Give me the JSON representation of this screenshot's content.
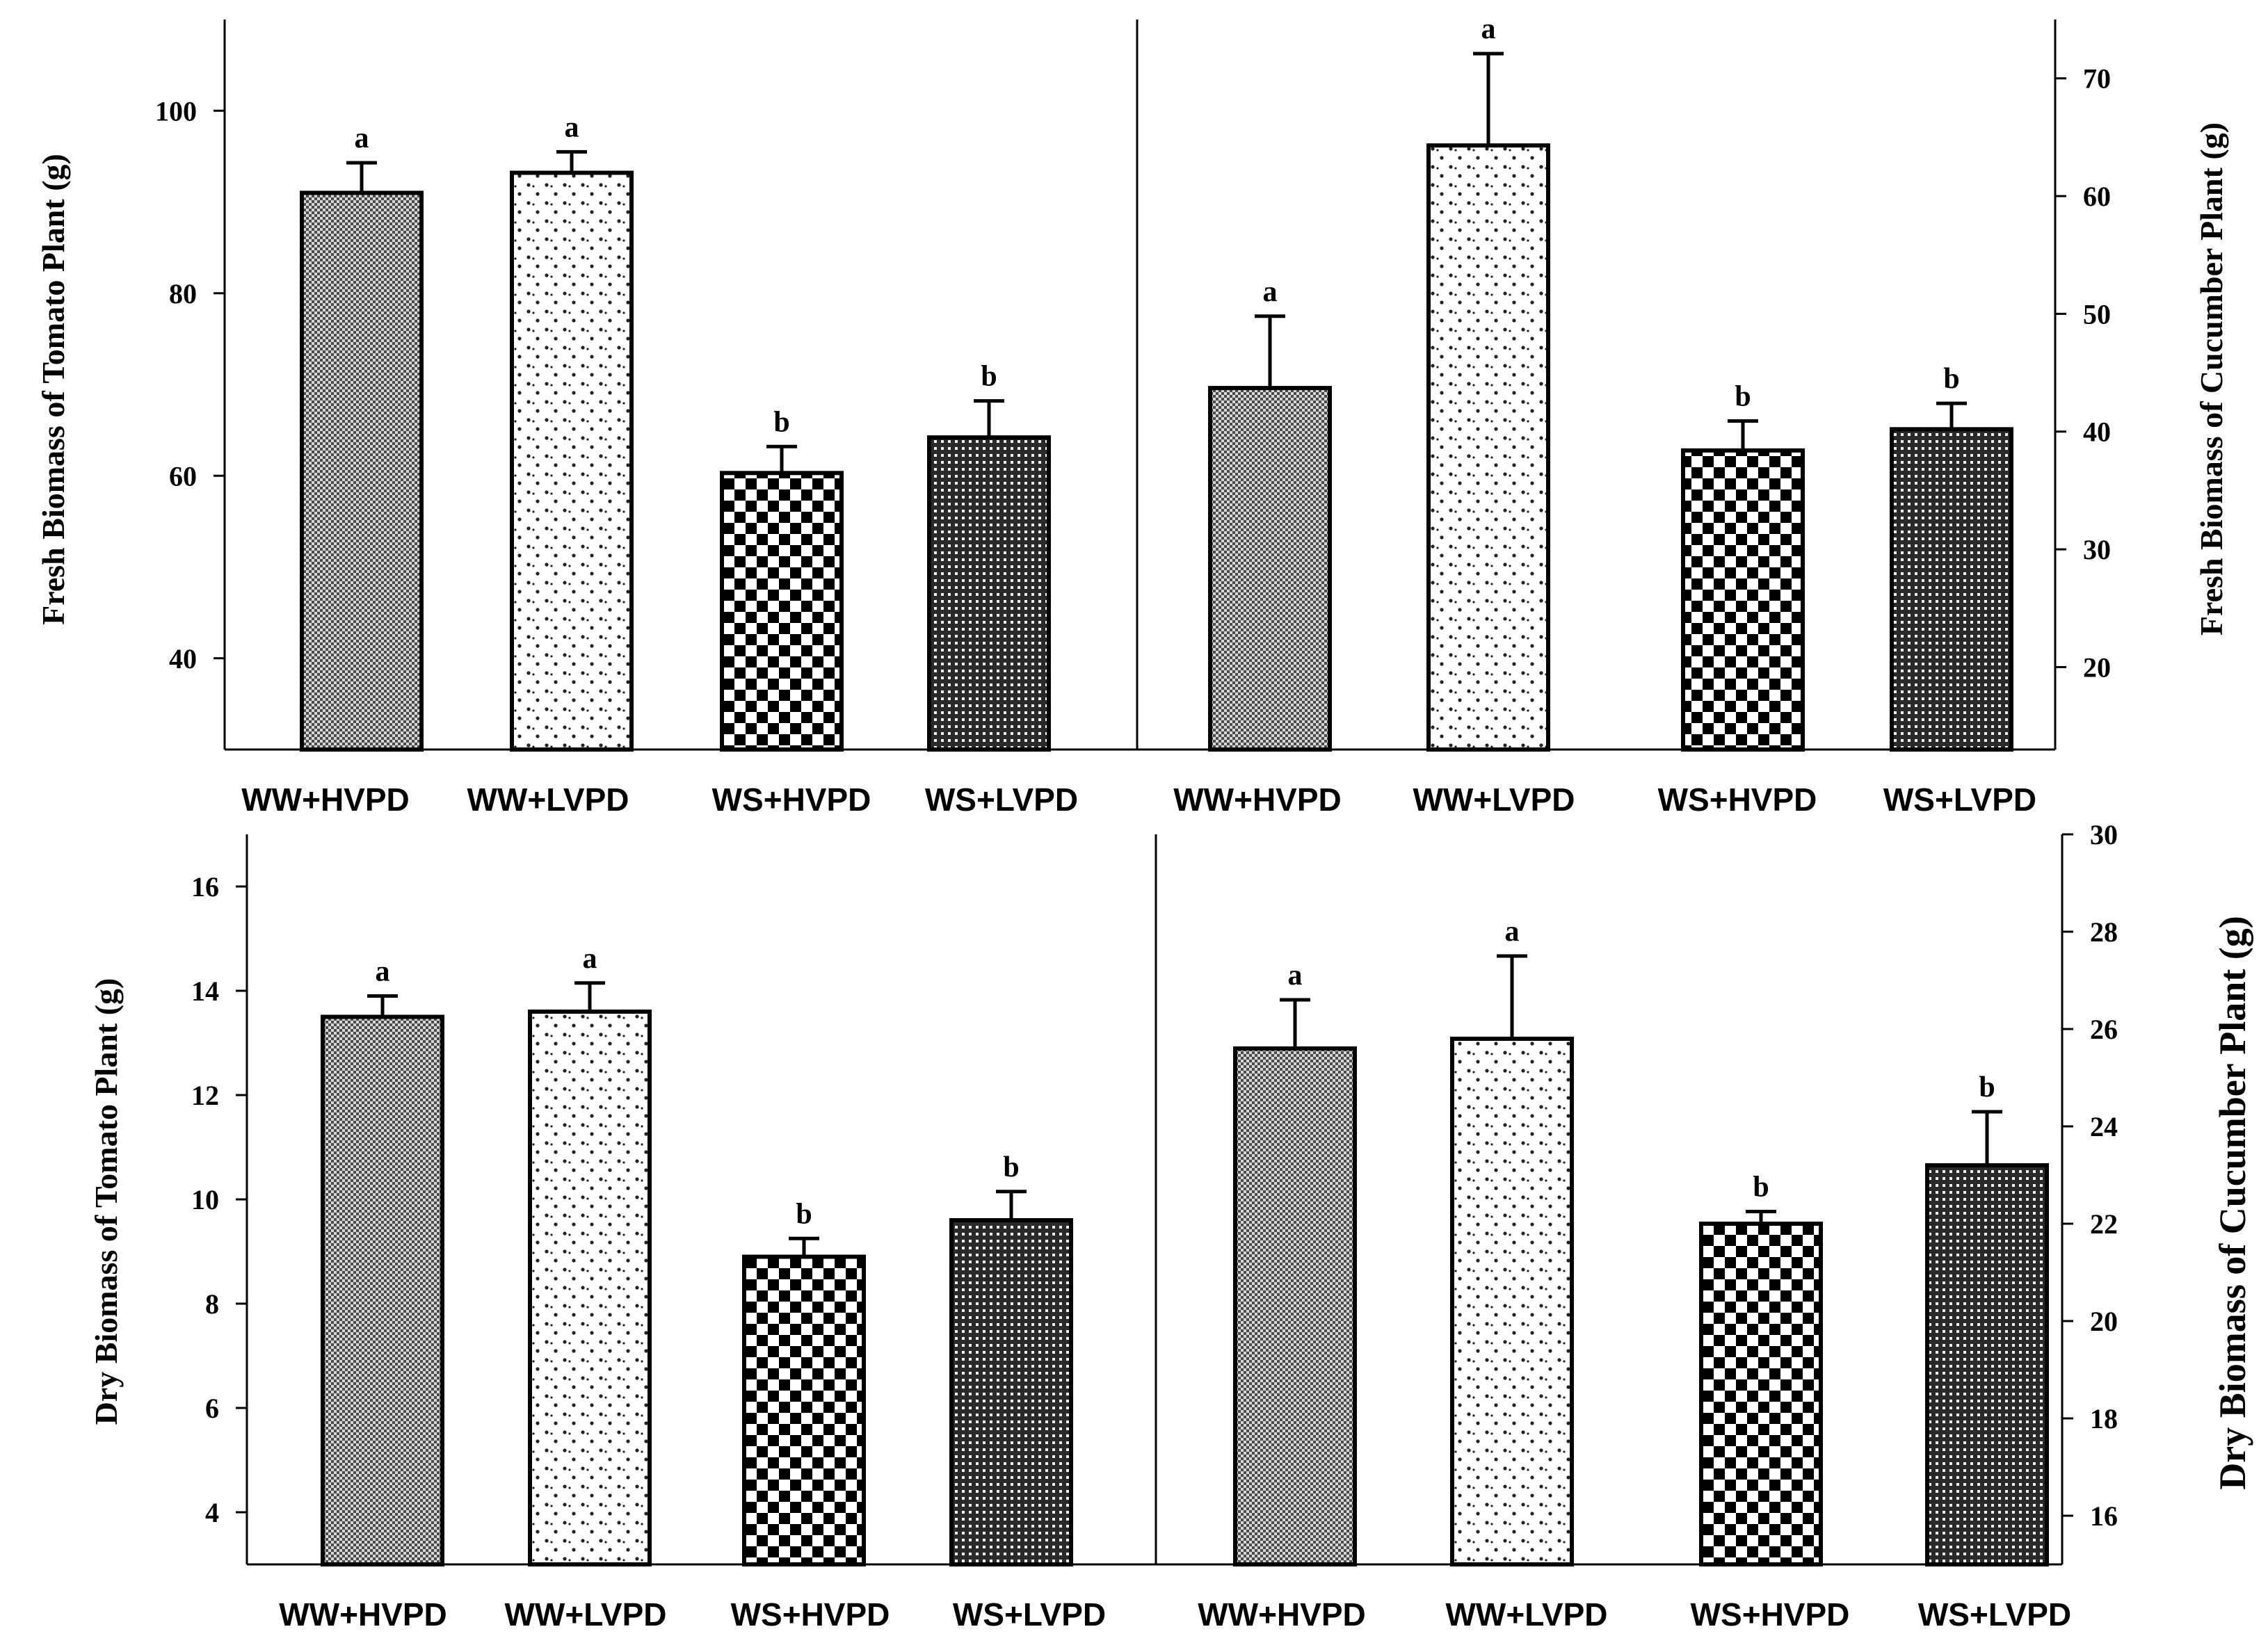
{
  "categories": [
    "WW+HVPD",
    "WW+LVPD",
    "WS+HVPD",
    "WS+LVPD"
  ],
  "chart_data": [
    {
      "type": "bar",
      "title": "",
      "xlabel": "",
      "ylabel": "Fresh Biomass of Tomato Plant (g)",
      "axis_side": "left",
      "categories": [
        "WW+HVPD",
        "WW+LVPD",
        "WS+HVPD",
        "WS+LVPD"
      ],
      "values": [
        91,
        93.2,
        60.3,
        64.2
      ],
      "errors": [
        3.3,
        2.3,
        2.9,
        4
      ],
      "letters": [
        "a",
        "a",
        "b",
        "b"
      ],
      "ylim": [
        30,
        110
      ],
      "yticks": [
        40,
        60,
        80,
        100
      ]
    },
    {
      "type": "bar",
      "title": "",
      "xlabel": "",
      "ylabel": "Fresh Biomass of Cucumber Plant (g)",
      "axis_side": "right",
      "categories": [
        "WW+HVPD",
        "WW+LVPD",
        "WS+HVPD",
        "WS+LVPD"
      ],
      "values": [
        43.7,
        64.3,
        38.4,
        40.2
      ],
      "errors": [
        6.1,
        7.8,
        2.5,
        2.2
      ],
      "letters": [
        "a",
        "a",
        "b",
        "b"
      ],
      "ylim": [
        13,
        75
      ],
      "yticks": [
        20,
        30,
        40,
        50,
        60,
        70
      ]
    },
    {
      "type": "bar",
      "title": "",
      "xlabel": "",
      "ylabel": "Dry Biomass of Tomato Plant (g)",
      "axis_side": "left",
      "categories": [
        "WW+HVPD",
        "WW+LVPD",
        "WS+HVPD",
        "WS+LVPD"
      ],
      "values": [
        13.5,
        13.6,
        8.9,
        9.6
      ],
      "errors": [
        0.4,
        0.55,
        0.35,
        0.55
      ],
      "letters": [
        "a",
        "a",
        "b",
        "b"
      ],
      "ylim": [
        3,
        17
      ],
      "yticks": [
        4,
        6,
        8,
        10,
        12,
        14,
        16
      ]
    },
    {
      "type": "bar",
      "title": "",
      "xlabel": "",
      "ylabel": "Dry Biomass of Cucumber Plant (g)",
      "axis_side": "right",
      "categories": [
        "WW+HVPD",
        "WW+LVPD",
        "WS+HVPD",
        "WS+LVPD"
      ],
      "values": [
        25.6,
        25.8,
        22,
        23.2
      ],
      "errors": [
        1,
        1.7,
        0.25,
        1.1
      ],
      "letters": [
        "a",
        "a",
        "b",
        "b"
      ],
      "ylim": [
        15,
        30
      ],
      "yticks": [
        16,
        18,
        20,
        22,
        24,
        26,
        28,
        30
      ]
    }
  ],
  "colors": {
    "axis": "#000000",
    "bar_outline": "#000000",
    "background": "#ffffff"
  }
}
